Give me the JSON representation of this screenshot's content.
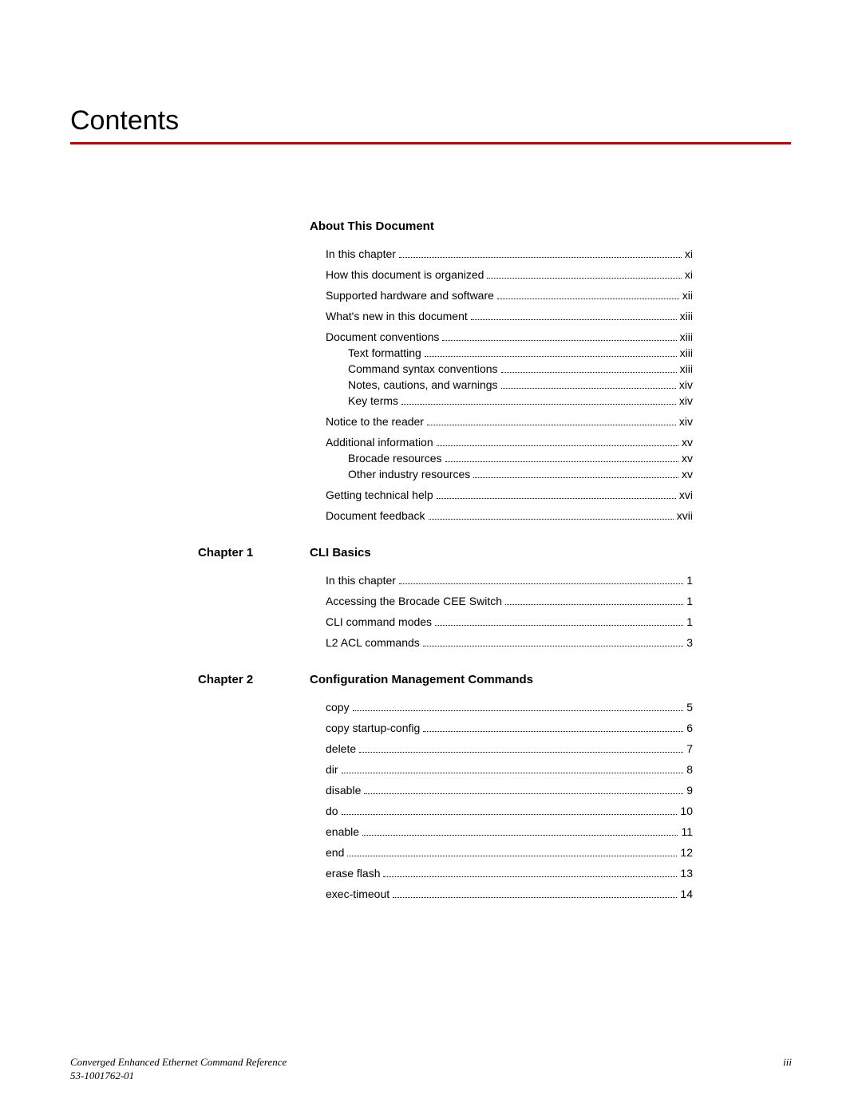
{
  "title": "Contents",
  "rule_color": "#cc0000",
  "sections": [
    {
      "chapter_label": "",
      "section_title": "About This Document",
      "entries": [
        {
          "text": "In this chapter",
          "page": "xi",
          "indent": 0
        },
        {
          "text": "How this document is organized",
          "page": "xi",
          "indent": 0
        },
        {
          "text": "Supported hardware and software",
          "page": "xii",
          "indent": 0
        },
        {
          "text": "What's new in this document",
          "page": "xiii",
          "indent": 0
        },
        {
          "text": "Document conventions",
          "page": "xiii",
          "indent": 0,
          "tight": true
        },
        {
          "text": "Text formatting",
          "page": "xiii",
          "indent": 1
        },
        {
          "text": "Command syntax conventions",
          "page": "xiii",
          "indent": 1
        },
        {
          "text": "Notes, cautions, and warnings",
          "page": "xiv",
          "indent": 1
        },
        {
          "text": "Key terms",
          "page": "xiv",
          "indent": 1,
          "last_sub": true
        },
        {
          "text": "Notice to the reader",
          "page": "xiv",
          "indent": 0
        },
        {
          "text": "Additional information",
          "page": "xv",
          "indent": 0,
          "tight": true
        },
        {
          "text": "Brocade resources",
          "page": "xv",
          "indent": 1
        },
        {
          "text": "Other industry resources",
          "page": "xv",
          "indent": 1,
          "last_sub": true
        },
        {
          "text": "Getting technical help",
          "page": "xvi",
          "indent": 0
        },
        {
          "text": "Document feedback",
          "page": "xvii",
          "indent": 0
        }
      ]
    },
    {
      "chapter_label": "Chapter 1",
      "section_title": "CLI Basics",
      "entries": [
        {
          "text": "In this chapter",
          "page": "1",
          "indent": 0
        },
        {
          "text": "Accessing the Brocade CEE Switch",
          "page": "1",
          "indent": 0
        },
        {
          "text": "CLI command modes",
          "page": "1",
          "indent": 0
        },
        {
          "text": "L2 ACL commands",
          "page": "3",
          "indent": 0
        }
      ]
    },
    {
      "chapter_label": "Chapter 2",
      "section_title": "Configuration Management Commands",
      "entries": [
        {
          "text": "copy",
          "page": "5",
          "indent": 0
        },
        {
          "text": "copy startup-config",
          "page": "6",
          "indent": 0
        },
        {
          "text": "delete",
          "page": "7",
          "indent": 0
        },
        {
          "text": "dir",
          "page": "8",
          "indent": 0
        },
        {
          "text": "disable",
          "page": "9",
          "indent": 0
        },
        {
          "text": "do",
          "page": "10",
          "indent": 0
        },
        {
          "text": "enable",
          "page": "11",
          "indent": 0
        },
        {
          "text": "end",
          "page": "12",
          "indent": 0
        },
        {
          "text": "erase flash",
          "page": "13",
          "indent": 0
        },
        {
          "text": "exec-timeout",
          "page": "14",
          "indent": 0
        }
      ]
    }
  ],
  "footer": {
    "doc_title": "Converged Enhanced Ethernet Command Reference",
    "doc_number": "53-1001762-01",
    "page_number": "iii"
  }
}
